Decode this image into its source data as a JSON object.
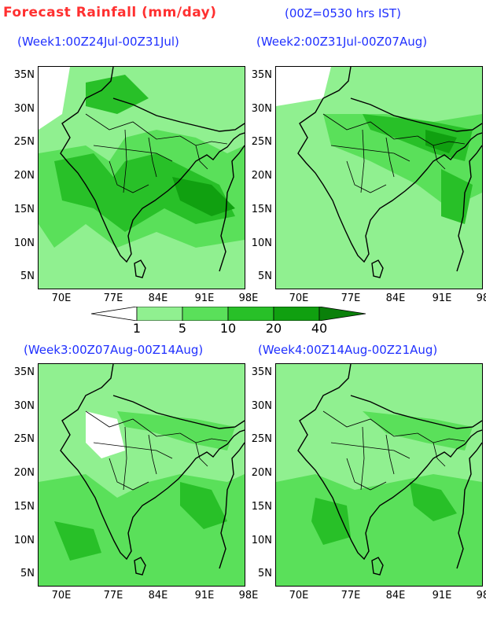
{
  "header": {
    "title": "Forecast Rainfall (mm/day)",
    "subtitle": "(00Z=0530 hrs IST)"
  },
  "axes": {
    "lat_labels": [
      "35N",
      "30N",
      "25N",
      "20N",
      "15N",
      "10N",
      "5N"
    ],
    "lon_labels": [
      "70E",
      "77E",
      "84E",
      "91E",
      "98E"
    ]
  },
  "legend": {
    "levels": [
      "1",
      "5",
      "10",
      "20",
      "40"
    ],
    "colors": [
      "#ffffff",
      "#90f090",
      "#5ae05a",
      "#28c028",
      "#10a010",
      "#0a800a"
    ]
  },
  "panels": [
    {
      "label": "(Week1:00Z24Jul-00Z31Jul)"
    },
    {
      "label": "(Week2:00Z31Jul-00Z07Aug)"
    },
    {
      "label": "(Week3:00Z07Aug-00Z14Aug)"
    },
    {
      "label": "(Week4:00Z14Aug-00Z21Aug)"
    }
  ]
}
